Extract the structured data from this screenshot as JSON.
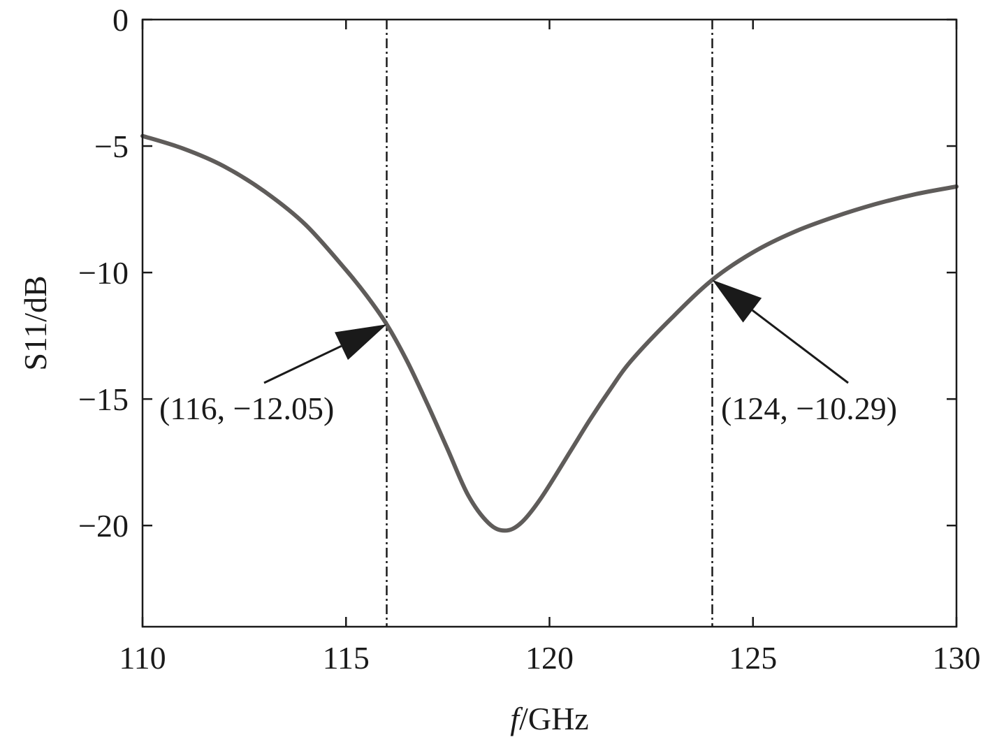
{
  "chart_data": {
    "type": "line",
    "xlabel_italic": "f",
    "xlabel_rest": "/GHz",
    "ylabel": "S11/dB",
    "xlim": [
      110,
      130
    ],
    "ylim": [
      -24,
      0
    ],
    "xticks": [
      110,
      115,
      120,
      125,
      130
    ],
    "xtick_labels": [
      "110",
      "115",
      "120",
      "125",
      "130"
    ],
    "yticks": [
      0,
      -5,
      -10,
      -15,
      -20
    ],
    "ytick_labels": [
      "0",
      "−5",
      "−10",
      "−15",
      "−20"
    ],
    "grid": false,
    "series": [
      {
        "x": [
          110,
          111,
          112,
          113,
          114,
          115,
          115.5,
          116,
          116.5,
          117,
          117.5,
          118,
          118.5,
          118.9,
          119.3,
          119.8,
          120.5,
          121,
          121.5,
          122,
          123,
          124,
          125,
          126,
          127,
          128,
          129,
          130
        ],
        "y": [
          -4.6,
          -5.1,
          -5.8,
          -6.8,
          -8.1,
          -9.9,
          -10.9,
          -12.05,
          -13.5,
          -15.2,
          -17.0,
          -18.8,
          -19.9,
          -20.2,
          -19.9,
          -18.9,
          -17.1,
          -15.8,
          -14.6,
          -13.5,
          -11.8,
          -10.29,
          -9.2,
          -8.4,
          -7.8,
          -7.3,
          -6.9,
          -6.6
        ],
        "color": "#5f5c5a"
      }
    ],
    "vlines": [
      116,
      124
    ],
    "annotations": [
      {
        "label": "(116, −12.05)",
        "x": 116,
        "y": -12.05
      },
      {
        "label": "(124, −10.29)",
        "x": 124,
        "y": -10.29
      }
    ]
  }
}
